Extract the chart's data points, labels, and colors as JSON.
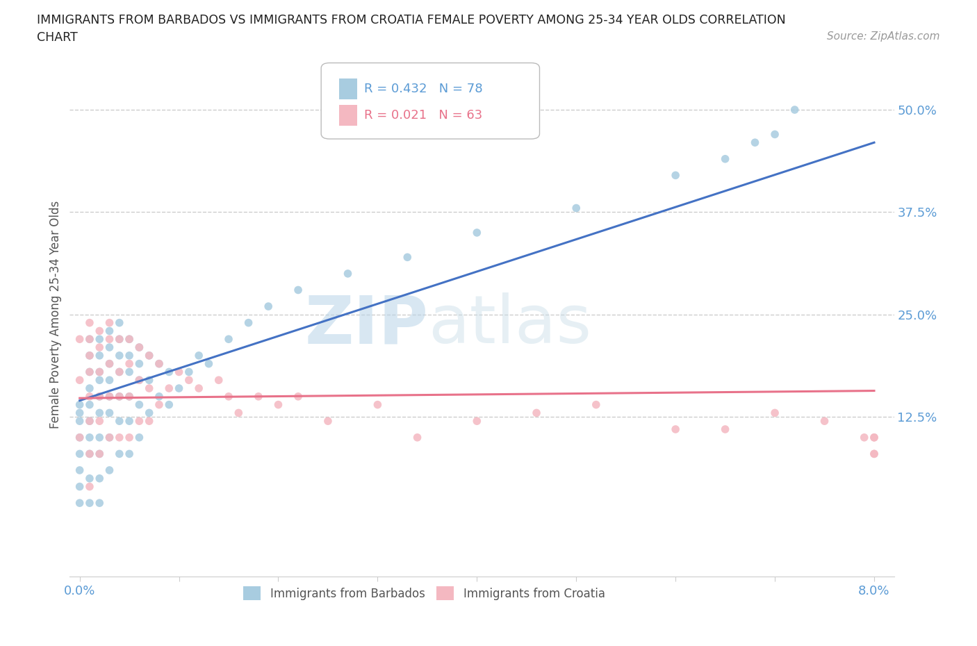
{
  "title_line1": "IMMIGRANTS FROM BARBADOS VS IMMIGRANTS FROM CROATIA FEMALE POVERTY AMONG 25-34 YEAR OLDS CORRELATION",
  "title_line2": "CHART",
  "source": "Source: ZipAtlas.com",
  "ylabel": "Female Poverty Among 25-34 Year Olds",
  "xlim": [
    -0.001,
    0.082
  ],
  "ylim": [
    -0.07,
    0.57
  ],
  "xticks": [
    0.0,
    0.01,
    0.02,
    0.03,
    0.04,
    0.05,
    0.06,
    0.07,
    0.08
  ],
  "xticklabels": [
    "0.0%",
    "",
    "",
    "",
    "",
    "",
    "",
    "",
    "8.0%"
  ],
  "yticks_right": [
    0.125,
    0.25,
    0.375,
    0.5
  ],
  "ytick_right_labels": [
    "12.5%",
    "25.0%",
    "37.5%",
    "50.0%"
  ],
  "color_barbados": "#a8cce0",
  "color_croatia": "#f4b8c1",
  "line_color_barbados": "#4472c4",
  "line_color_croatia": "#e8728a",
  "legend_r_barbados": "R = 0.432",
  "legend_n_barbados": "N = 78",
  "legend_r_croatia": "R = 0.021",
  "legend_n_croatia": "N = 63",
  "label_barbados": "Immigrants from Barbados",
  "label_croatia": "Immigrants from Croatia",
  "watermark_zip": "ZIP",
  "watermark_atlas": "atlas",
  "barbados_x": [
    0.0,
    0.0,
    0.0,
    0.0,
    0.0,
    0.0,
    0.0,
    0.0,
    0.001,
    0.001,
    0.001,
    0.001,
    0.001,
    0.001,
    0.001,
    0.001,
    0.001,
    0.001,
    0.002,
    0.002,
    0.002,
    0.002,
    0.002,
    0.002,
    0.002,
    0.002,
    0.002,
    0.002,
    0.003,
    0.003,
    0.003,
    0.003,
    0.003,
    0.003,
    0.003,
    0.003,
    0.004,
    0.004,
    0.004,
    0.004,
    0.004,
    0.004,
    0.004,
    0.005,
    0.005,
    0.005,
    0.005,
    0.005,
    0.005,
    0.006,
    0.006,
    0.006,
    0.006,
    0.006,
    0.007,
    0.007,
    0.007,
    0.008,
    0.008,
    0.009,
    0.009,
    0.01,
    0.011,
    0.012,
    0.013,
    0.015,
    0.017,
    0.019,
    0.022,
    0.027,
    0.033,
    0.04,
    0.05,
    0.06,
    0.065,
    0.068,
    0.07,
    0.072
  ],
  "barbados_y": [
    0.14,
    0.13,
    0.12,
    0.1,
    0.08,
    0.06,
    0.04,
    0.02,
    0.22,
    0.2,
    0.18,
    0.16,
    0.14,
    0.12,
    0.1,
    0.08,
    0.05,
    0.02,
    0.22,
    0.2,
    0.18,
    0.17,
    0.15,
    0.13,
    0.1,
    0.08,
    0.05,
    0.02,
    0.23,
    0.21,
    0.19,
    0.17,
    0.15,
    0.13,
    0.1,
    0.06,
    0.24,
    0.22,
    0.2,
    0.18,
    0.15,
    0.12,
    0.08,
    0.22,
    0.2,
    0.18,
    0.15,
    0.12,
    0.08,
    0.21,
    0.19,
    0.17,
    0.14,
    0.1,
    0.2,
    0.17,
    0.13,
    0.19,
    0.15,
    0.18,
    0.14,
    0.16,
    0.18,
    0.2,
    0.19,
    0.22,
    0.24,
    0.26,
    0.28,
    0.3,
    0.32,
    0.35,
    0.38,
    0.42,
    0.44,
    0.46,
    0.47,
    0.5
  ],
  "croatia_x": [
    0.0,
    0.0,
    0.0,
    0.001,
    0.001,
    0.001,
    0.001,
    0.001,
    0.001,
    0.001,
    0.001,
    0.002,
    0.002,
    0.002,
    0.002,
    0.002,
    0.002,
    0.003,
    0.003,
    0.003,
    0.003,
    0.003,
    0.004,
    0.004,
    0.004,
    0.004,
    0.005,
    0.005,
    0.005,
    0.005,
    0.006,
    0.006,
    0.006,
    0.007,
    0.007,
    0.007,
    0.008,
    0.008,
    0.009,
    0.01,
    0.011,
    0.012,
    0.014,
    0.015,
    0.016,
    0.018,
    0.02,
    0.022,
    0.025,
    0.03,
    0.034,
    0.04,
    0.046,
    0.052,
    0.06,
    0.065,
    0.07,
    0.075,
    0.079,
    0.08,
    0.08,
    0.08,
    0.08
  ],
  "croatia_y": [
    0.22,
    0.17,
    0.1,
    0.24,
    0.22,
    0.2,
    0.18,
    0.15,
    0.12,
    0.08,
    0.04,
    0.23,
    0.21,
    0.18,
    0.15,
    0.12,
    0.08,
    0.24,
    0.22,
    0.19,
    0.15,
    0.1,
    0.22,
    0.18,
    0.15,
    0.1,
    0.22,
    0.19,
    0.15,
    0.1,
    0.21,
    0.17,
    0.12,
    0.2,
    0.16,
    0.12,
    0.19,
    0.14,
    0.16,
    0.18,
    0.17,
    0.16,
    0.17,
    0.15,
    0.13,
    0.15,
    0.14,
    0.15,
    0.12,
    0.14,
    0.1,
    0.12,
    0.13,
    0.14,
    0.11,
    0.11,
    0.13,
    0.12,
    0.1,
    0.1,
    0.08,
    0.08,
    0.1
  ]
}
